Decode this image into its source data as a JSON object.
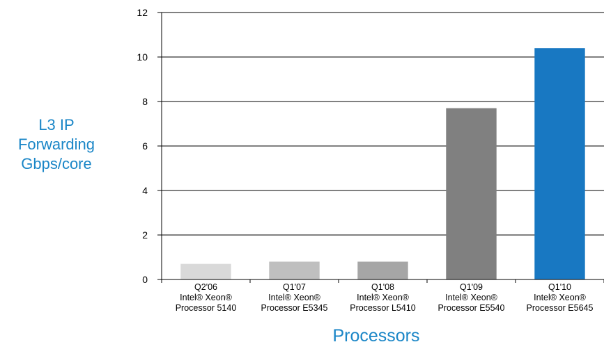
{
  "chart_data": {
    "type": "bar",
    "title": "",
    "ylabel_lines": [
      "L3 IP",
      "Forwarding",
      "Gbps/core"
    ],
    "xlabel": "Processors",
    "ylim": [
      0,
      12
    ],
    "yticks": [
      0,
      2,
      4,
      6,
      8,
      10,
      12
    ],
    "grid": true,
    "categories": [
      [
        "Q2'06",
        "Intel® Xeon®",
        "Processor 5140"
      ],
      [
        "Q1'07",
        "Intel® Xeon®",
        "Processor E5345"
      ],
      [
        "Q1'08",
        "Intel® Xeon®",
        "Processor L5410"
      ],
      [
        "Q1'09",
        "Intel® Xeon®",
        "Processor E5540"
      ],
      [
        "Q1'10",
        "Intel® Xeon®",
        "Processor E5645"
      ]
    ],
    "values": [
      0.7,
      0.8,
      0.8,
      7.7,
      10.4
    ],
    "colors": [
      "#d9d9d9",
      "#bfbfbf",
      "#a6a6a6",
      "#808080",
      "#1878c2"
    ],
    "gridline_color": "#808080",
    "axis_color": "#000000"
  }
}
